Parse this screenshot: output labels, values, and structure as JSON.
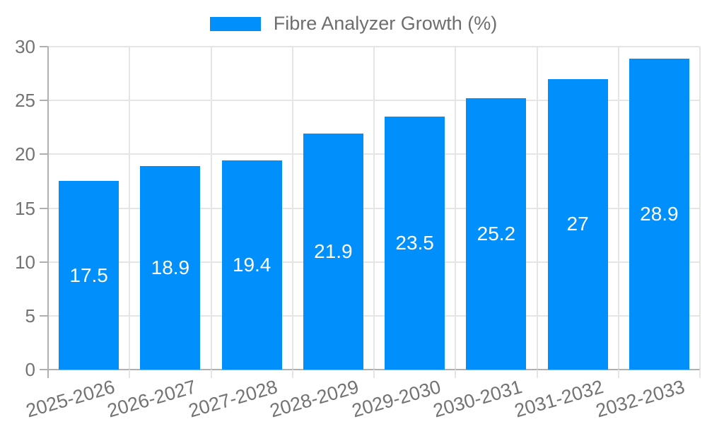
{
  "legend": {
    "label": "Fibre Analyzer Growth (%)"
  },
  "chart_data": {
    "type": "bar",
    "title": "Fibre Analyzer Growth (%)",
    "legend_entries": [
      "Fibre Analyzer Growth (%)"
    ],
    "legend_position": "top",
    "categories": [
      "2025-2026",
      "2026-2027",
      "2027-2028",
      "2028-2029",
      "2029-2030",
      "2030-2031",
      "2031-2032",
      "2032-2033"
    ],
    "values": [
      17.5,
      18.9,
      19.4,
      21.9,
      23.5,
      25.2,
      27,
      28.9
    ],
    "data_labels": [
      "17.5",
      "18.9",
      "19.4",
      "21.9",
      "23.5",
      "25.2",
      "27",
      "28.9"
    ],
    "xlabel": "",
    "ylabel": "",
    "ylim": [
      0,
      30
    ],
    "y_ticks": [
      0,
      5,
      10,
      15,
      20,
      25,
      30
    ],
    "grid": true,
    "x_label_rotation_deg": -16,
    "colors": {
      "bar": "#008FFB",
      "grid": "#e5e5e5",
      "axis": "#b0b0b0",
      "tick_label": "#737373",
      "legend_label": "#6e6e6e",
      "data_label": "#ffffff",
      "background": "#ffffff"
    }
  }
}
